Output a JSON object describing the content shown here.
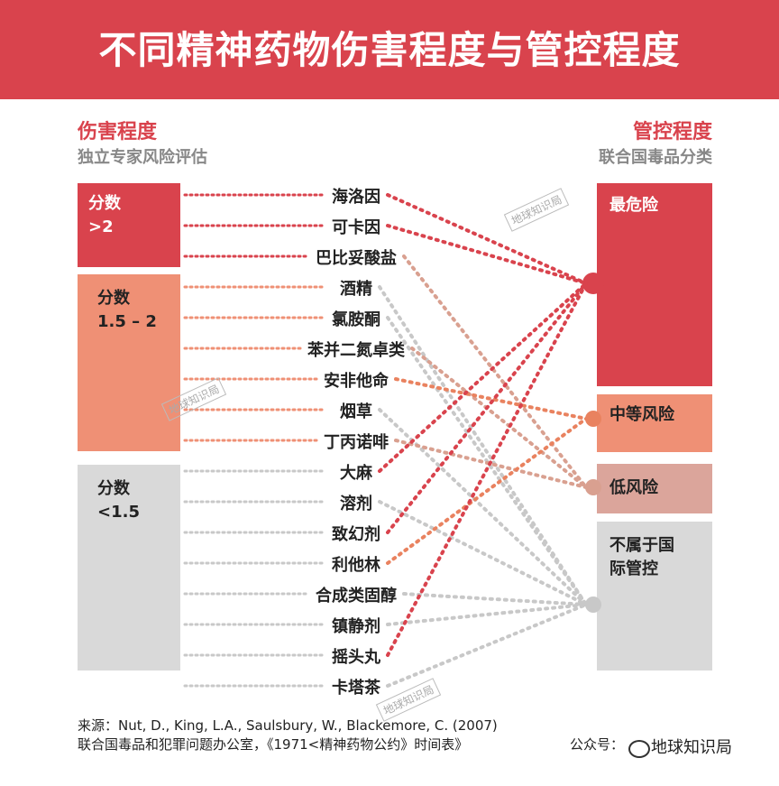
{
  "title": "不同精神药物伤害程度与管控程度",
  "left_axis": {
    "title": "伤害程度",
    "subtitle": "独立专家风险评估"
  },
  "right_axis": {
    "title": "管控程度",
    "subtitle": "联合国毒品分类"
  },
  "harm_groups": [
    {
      "label": "分数\n>2",
      "color": "#d9434d",
      "text_color": "#ffffff"
    },
    {
      "label": "分数\n1.5 – 2",
      "color": "#ef9075",
      "text_color": "#222222"
    },
    {
      "label": "分数\n<1.5",
      "color": "#d9d9d9",
      "text_color": "#222222"
    }
  ],
  "control_groups": [
    {
      "label": "最危险",
      "color": "#d9434d",
      "text_color": "#ffffff",
      "link_color": "#d9434d"
    },
    {
      "label": "中等风险",
      "color": "#ef9075",
      "text_color": "#222222",
      "link_color": "#e9825f"
    },
    {
      "label": "低风险",
      "color": "#dba59b",
      "text_color": "#222222",
      "link_color": "#d9a090"
    },
    {
      "label": "不属于国\n际管控",
      "color": "#d9d9d9",
      "text_color": "#222222",
      "link_color": "#c8c8c8"
    }
  ],
  "drugs": [
    {
      "name": "海洛因",
      "harm_group": 0,
      "control": 0
    },
    {
      "name": "可卡因",
      "harm_group": 0,
      "control": 0
    },
    {
      "name": "巴比妥酸盐",
      "harm_group": 0,
      "control": 2
    },
    {
      "name": "酒精",
      "harm_group": 1,
      "control": 3
    },
    {
      "name": "氯胺酮",
      "harm_group": 1,
      "control": 3
    },
    {
      "name": "苯并二氮卓类",
      "harm_group": 1,
      "control": 2
    },
    {
      "name": "安非他命",
      "harm_group": 1,
      "control": 1
    },
    {
      "name": "烟草",
      "harm_group": 1,
      "control": 3
    },
    {
      "name": "丁丙诺啡",
      "harm_group": 1,
      "control": 2
    },
    {
      "name": "大麻",
      "harm_group": 2,
      "control": 0
    },
    {
      "name": "溶剂",
      "harm_group": 2,
      "control": 3
    },
    {
      "name": "致幻剂",
      "harm_group": 2,
      "control": 0
    },
    {
      "name": "利他林",
      "harm_group": 2,
      "control": 1
    },
    {
      "name": "合成类固醇",
      "harm_group": 2,
      "control": 3
    },
    {
      "name": "镇静剂",
      "harm_group": 2,
      "control": 3
    },
    {
      "name": "摇头丸",
      "harm_group": 2,
      "control": 0
    },
    {
      "name": "卡塔茶",
      "harm_group": 2,
      "control": 3
    }
  ],
  "footer": {
    "source_line1": "来源：Nut, D., King, L.A., Saulsbury, W., Blackemore, C. (2007)",
    "source_line2": "联合国毒品和犯罪问题办公室，《1971<精神药物公约》时间表》",
    "account_label": "公众号：",
    "account_name": "地球知识局"
  },
  "watermark": "地球知识局"
}
